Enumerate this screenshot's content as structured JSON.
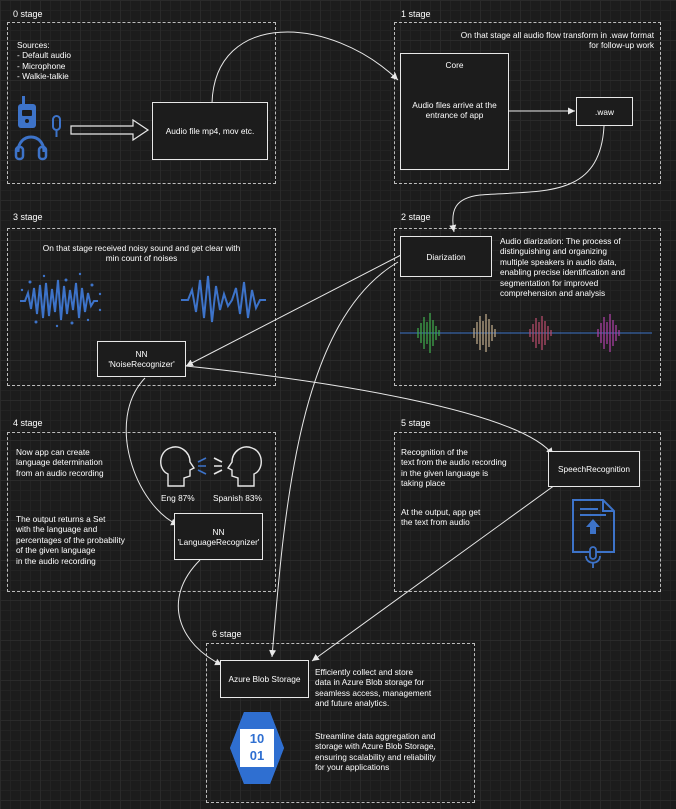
{
  "stages": {
    "s0": {
      "label": "0 stage",
      "sources_text": "Sources:\n- Default audio\n- Microphone\n- Walkie-talkie",
      "audio_file_box": "Audio file mp4, mov etc."
    },
    "s1": {
      "label": "1 stage",
      "note": "On that stage all audio flow transform in .waw format\nfor follow-up work",
      "core_title": "Core",
      "core_text": "Audio files arrive at the\nentrance of app",
      "waw_box": ".waw"
    },
    "s2": {
      "label": "2 stage",
      "diarization_box": "Diarization",
      "description": "Audio diarization: The process of\ndistinguishing and organizing\nmultiple speakers in audio data,\nenabling precise identification and\nsegmentation for improved\ncomprehension and analysis"
    },
    "s3": {
      "label": "3 stage",
      "description": "On that stage received noisy sound and get clear with\nmin count of noises",
      "nn_box": "NN\n'NoiseRecognizer'"
    },
    "s4": {
      "label": "4 stage",
      "text1": "Now app can create\nlanguage determination\nfrom an audio recording",
      "text2": "The output returns a Set\nwith the language and\npercentages of the probability\nof the given language\nin the audio recording",
      "eng": "Eng 87%",
      "spanish": "Spanish 83%",
      "nn_box": "NN\n'LanguageRecognizer'"
    },
    "s5": {
      "label": "5 stage",
      "text1": "Recognition of the\ntext from the audio recording\nin the given language is\ntaking place",
      "text2": "At the output, app get\nthe text from audio",
      "speech_box": "SpeechRecognition"
    },
    "s6": {
      "label": "6 stage",
      "blob_box": "Azure Blob Storage",
      "text1": "Efficiently collect and store\ndata in Azure Blob storage for\nseamless access, management\nand future analytics.",
      "text2": "Streamline data aggregation and\nstorage with Azure Blob Storage,\nensuring scalability and reliability\nfor your applications",
      "icon_top": "10",
      "icon_bottom": "01"
    }
  },
  "icons": [
    "walkie-talkie-icon",
    "headphones-icon",
    "microphone-icon",
    "noisy-wave-icon",
    "clean-wave-icon",
    "diarization-wave-icon",
    "speaking-heads-icon",
    "document-audio-icon",
    "azure-blob-icon"
  ],
  "colors": {
    "accent_blue": "#3d73c9",
    "stroke": "#e8e8e8",
    "background": "#1c1c1c"
  }
}
